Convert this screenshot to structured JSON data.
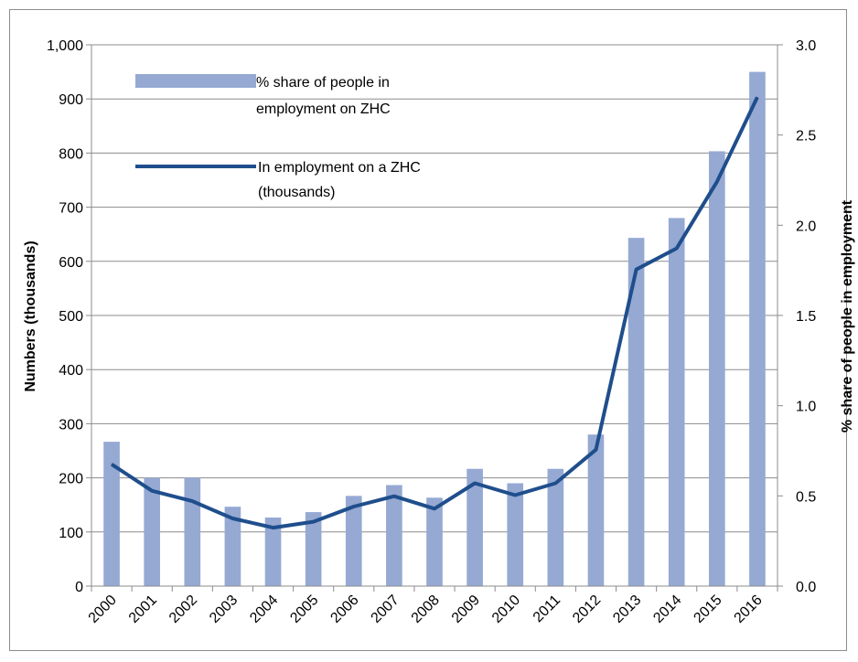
{
  "chart_data": {
    "type": "bar",
    "categories": [
      "2000",
      "2001",
      "2002",
      "2003",
      "2004",
      "2005",
      "2006",
      "2007",
      "2008",
      "2009",
      "2010",
      "2011",
      "2012",
      "2013",
      "2014",
      "2015",
      "2016"
    ],
    "series": [
      {
        "name": "% share of people in employment on ZHC",
        "chart_type": "bar",
        "axis": "right",
        "values": [
          0.8,
          0.6,
          0.6,
          0.44,
          0.38,
          0.41,
          0.5,
          0.56,
          0.49,
          0.65,
          0.57,
          0.65,
          0.84,
          1.93,
          2.04,
          2.41,
          2.85
        ]
      },
      {
        "name": "In employment on a ZHC (thousands)",
        "chart_type": "line",
        "axis": "left",
        "values": [
          225,
          176,
          157,
          125,
          108,
          119,
          147,
          166,
          143,
          190,
          168,
          190,
          252,
          585,
          624,
          747,
          903
        ]
      }
    ],
    "legend_lines": [
      [
        "% share of people in",
        "employment on ZHC"
      ],
      [
        "In employment on a ZHC",
        "(thousands)"
      ]
    ],
    "ylabel": "Numbers (thousands)",
    "y2label": "% share of people in employment",
    "ylim": [
      0,
      1000
    ],
    "y2lim": [
      0,
      3.0
    ],
    "yticks": [
      "0",
      "100",
      "200",
      "300",
      "400",
      "500",
      "600",
      "700",
      "800",
      "900",
      "1,000"
    ],
    "y2ticks": [
      "0.0",
      "0.5",
      "1.0",
      "1.5",
      "2.0",
      "2.5",
      "3.0"
    ],
    "grid": true,
    "legend_position": "top-left",
    "colors": {
      "bar": "#95a9d3",
      "line": "#1f4e8c",
      "grid": "#8c8c8c"
    }
  }
}
